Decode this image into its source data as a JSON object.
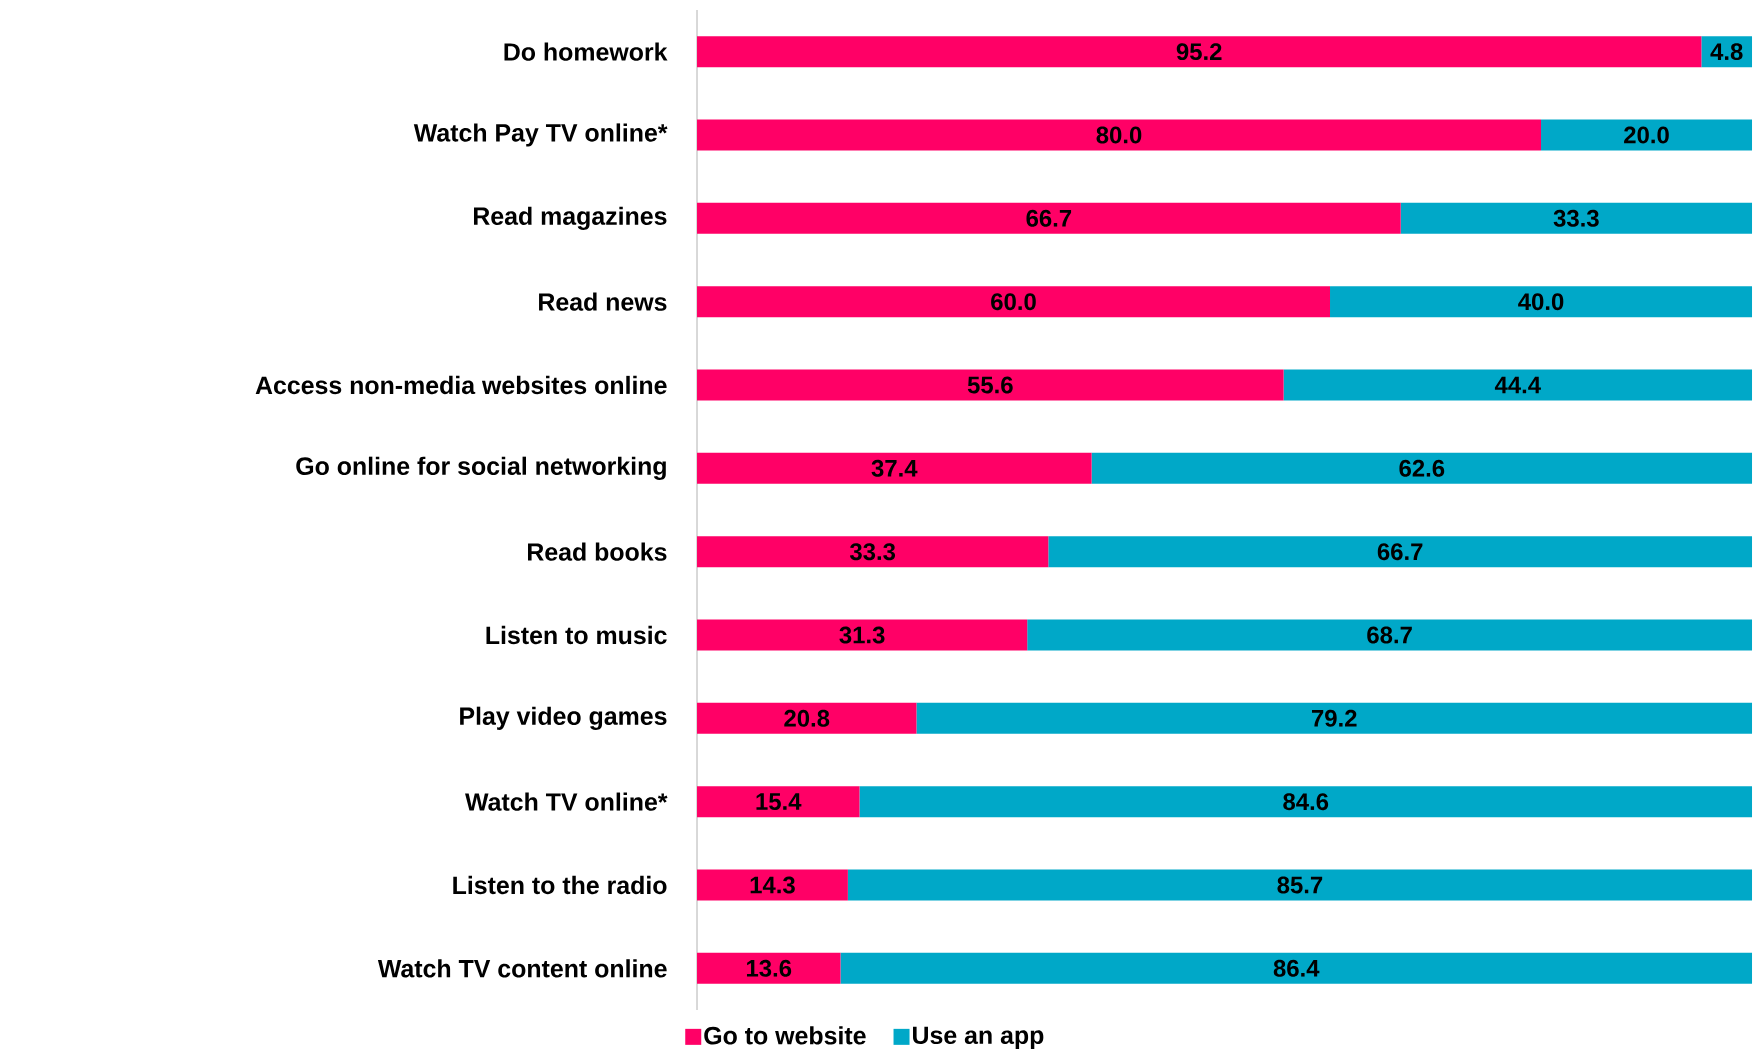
{
  "chart_data": {
    "type": "bar",
    "orientation": "horizontal",
    "stacked": true,
    "legend": "bottom",
    "tick_labels": "y",
    "categories": [
      "Do homework",
      "Watch Pay TV online*",
      "Read magazines",
      "Read news",
      "Access non-media websites online",
      "Go online for social networking",
      "Read books",
      "Listen to music",
      "Play video games",
      "Watch TV online*",
      "Listen to the radio",
      "Watch TV content online"
    ],
    "series": [
      {
        "name": "Go to website",
        "color": "#ff0066",
        "values": [
          95.2,
          80.0,
          66.7,
          60.0,
          55.6,
          37.4,
          33.3,
          31.3,
          20.8,
          15.4,
          14.3,
          13.6
        ],
        "value_labels": [
          "95.2",
          "80.0",
          "66.7",
          "60.0",
          "55.6",
          "37.4",
          "33.3",
          "31.3",
          "20.8",
          "15.4",
          "14.3",
          "13.6"
        ]
      },
      {
        "name": "Use an app",
        "color": "#00a8c8",
        "values": [
          4.8,
          20.0,
          33.3,
          40.0,
          44.4,
          62.6,
          66.7,
          68.7,
          79.2,
          84.6,
          85.7,
          86.4
        ],
        "value_labels": [
          "4.8",
          "20.0",
          "33.3",
          "40.0",
          "44.4",
          "62.6",
          "66.7",
          "68.7",
          "79.2",
          "84.6",
          "85.7",
          "86.4"
        ]
      }
    ]
  }
}
